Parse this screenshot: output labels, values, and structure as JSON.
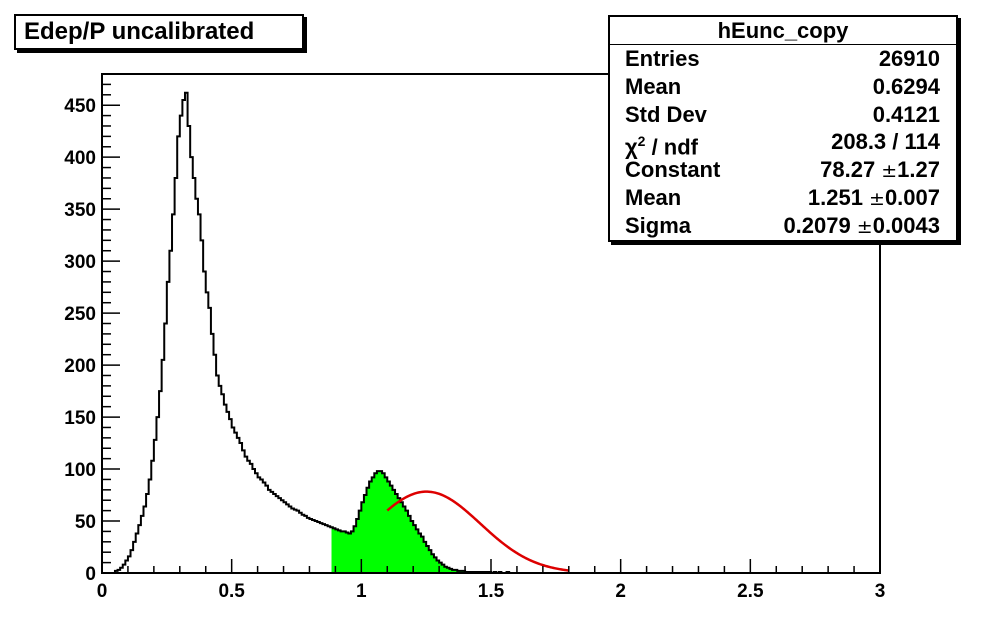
{
  "chart_data": {
    "type": "histogram",
    "title": "Edep/P uncalibrated",
    "xlim": [
      0,
      3
    ],
    "ylim": [
      0,
      480
    ],
    "x_ticks": [
      "0",
      "0.5",
      "1",
      "1.5",
      "2",
      "2.5",
      "3"
    ],
    "y_ticks": [
      "0",
      "50",
      "100",
      "150",
      "200",
      "250",
      "300",
      "350",
      "400",
      "450"
    ],
    "grid": false,
    "bin_width": 0.01,
    "bins_x0": 0.0,
    "counts": [
      0,
      0,
      0,
      0,
      0,
      2,
      3,
      5,
      8,
      12,
      16,
      22,
      30,
      38,
      46,
      55,
      64,
      76,
      90,
      108,
      128,
      150,
      175,
      205,
      240,
      280,
      310,
      345,
      380,
      420,
      440,
      455,
      462,
      430,
      400,
      380,
      360,
      345,
      320,
      290,
      270,
      255,
      230,
      210,
      190,
      180,
      172,
      162,
      155,
      148,
      140,
      135,
      130,
      125,
      118,
      112,
      108,
      105,
      100,
      96,
      92,
      90,
      87,
      84,
      80,
      78,
      76,
      74,
      72,
      70,
      68,
      66,
      64,
      62,
      61,
      60,
      58,
      56,
      55,
      53,
      52,
      51,
      50,
      49,
      48,
      47,
      46,
      45,
      44,
      43,
      42,
      41,
      40,
      40,
      39,
      38,
      40,
      45,
      52,
      60,
      68,
      75,
      82,
      88,
      92,
      96,
      98,
      98,
      96,
      92,
      88,
      84,
      80,
      76,
      72,
      68,
      64,
      60,
      55,
      50,
      46,
      42,
      38,
      35,
      30,
      26,
      22,
      18,
      15,
      12,
      10,
      8,
      6,
      5,
      4,
      3,
      3,
      2,
      2,
      2,
      1,
      1,
      1,
      1,
      1,
      1,
      1,
      1,
      1,
      1,
      0,
      1,
      0,
      1,
      0,
      0,
      1,
      0,
      0,
      0,
      0,
      0,
      0,
      0,
      0,
      0,
      0,
      0,
      0,
      0,
      0,
      0,
      0,
      0,
      0,
      0,
      0,
      0,
      0,
      0,
      0,
      0,
      0,
      0,
      0,
      0,
      0,
      0,
      0,
      0,
      0,
      0,
      0,
      0,
      0,
      0,
      0,
      0,
      0,
      0,
      0,
      0,
      0,
      0,
      0,
      0,
      0,
      0,
      0,
      0,
      0,
      0,
      0,
      0,
      0,
      0,
      0,
      0,
      0,
      0,
      0,
      0,
      0,
      0,
      0,
      0,
      0,
      0,
      0,
      0,
      0,
      0,
      0,
      0,
      0,
      0,
      0,
      0,
      0,
      0,
      0,
      0,
      0,
      0,
      0,
      0,
      0,
      0,
      0,
      0,
      0,
      0,
      0,
      0,
      0,
      0,
      0,
      0,
      0,
      0,
      0,
      0,
      0,
      0,
      0,
      0,
      0,
      0,
      0,
      0,
      0,
      0,
      0,
      0,
      0,
      0,
      0,
      0,
      0,
      0,
      0,
      0,
      0,
      0,
      0,
      0,
      0,
      0,
      0,
      0,
      0,
      0,
      0,
      0,
      0,
      0,
      0,
      0,
      0,
      0,
      0,
      0,
      0,
      0,
      0,
      0,
      0,
      0,
      0,
      0,
      0,
      0,
      0,
      0,
      0,
      0
    ],
    "fill_range": [
      0.885,
      1.62
    ],
    "fill_color": "#00ff00",
    "fit": {
      "function": "gaus",
      "range": [
        1.1,
        1.8
      ],
      "color": "#dd0000",
      "constant": 78.27,
      "mean": 1.251,
      "sigma": 0.2079
    }
  },
  "stats": {
    "name": "hEunc_copy",
    "rows": [
      {
        "label": "Entries",
        "value": "26910",
        "error": ""
      },
      {
        "label": "Mean",
        "value": "0.6294",
        "error": ""
      },
      {
        "label": "Std Dev",
        "value": "0.4121",
        "error": ""
      },
      {
        "label": "χ",
        "label_sup": "2",
        "label_rest": " / ndf",
        "value": "208.3 / 114",
        "error": ""
      },
      {
        "label": "Constant",
        "value": "78.27",
        "error": "1.27"
      },
      {
        "label": "Mean",
        "value": "1.251",
        "error": "0.007"
      },
      {
        "label": "Sigma",
        "value": "0.2079",
        "error": "0.0043"
      }
    ]
  },
  "colors": {
    "axis": "#000000",
    "line": "#000000"
  }
}
